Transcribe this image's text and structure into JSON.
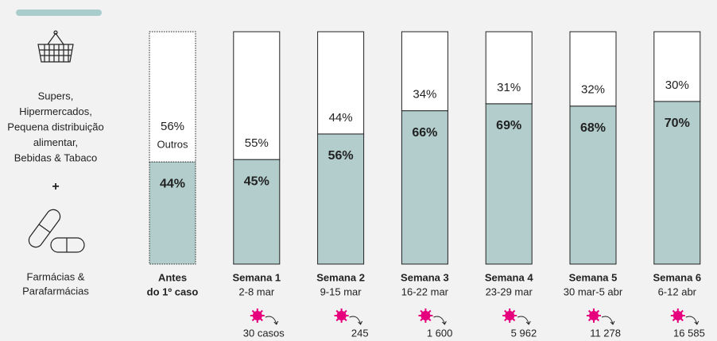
{
  "chart_data": {
    "type": "stacked-bar",
    "categories": [
      "Antes",
      "Semana 1",
      "Semana 2",
      "Semana 3",
      "Semana 4",
      "Semana 5",
      "Semana 6"
    ],
    "periods": [
      "do 1º caso",
      "2-8 mar",
      "9-15 mar",
      "16-22 mar",
      "23-29 mar",
      "30 mar-5 abr",
      "6-12 abr"
    ],
    "series": [
      {
        "color": "#b3cdcd",
        "values": [
          44,
          45,
          56,
          66,
          69,
          68,
          70
        ],
        "value_labels": [
          "44%",
          "45%",
          "56%",
          "66%",
          "69%",
          "68%",
          "70%"
        ]
      },
      {
        "name": "Outros",
        "color": "#ffffff",
        "values": [
          56,
          55,
          44,
          34,
          31,
          32,
          30
        ],
        "value_labels": [
          "56%",
          "55%",
          "44%",
          "34%",
          "31%",
          "32%",
          "30%"
        ]
      }
    ],
    "ylim": [
      0,
      100
    ],
    "cases": {
      "values": [
        30,
        245,
        1600,
        5962,
        11278,
        16585
      ],
      "value_labels": [
        "30 casos",
        "245",
        "1 600",
        "5 962",
        "11 278",
        "16 585"
      ],
      "color": "#e6007e"
    },
    "legend": {
      "group1": [
        "Supers,",
        "Hipermercados,",
        "Pequena distribuição",
        "alimentar,",
        "Bebidas & Tabaco"
      ],
      "plus": "+",
      "group2": [
        "Farmácias &",
        "Parafarmácias"
      ]
    }
  }
}
